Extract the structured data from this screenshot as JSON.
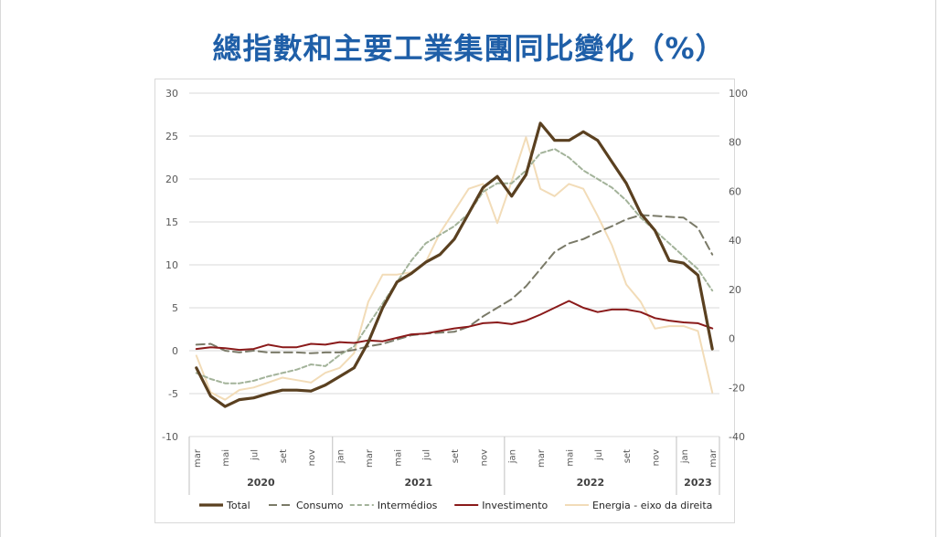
{
  "title": "總指數和主要工業集團同比變化（%）",
  "chart_data": {
    "type": "line",
    "xlabel": "",
    "ylabel": "",
    "ylim": [
      -10,
      30
    ],
    "y2lim": [
      -40,
      100
    ],
    "grid": true,
    "legend_position": "bottom",
    "y_ticks": [
      "30",
      "25",
      "20",
      "15",
      "10",
      "5",
      "0",
      "-5",
      "-10"
    ],
    "y2_ticks": [
      "100",
      "80",
      "60",
      "40",
      "20",
      "0",
      "-20",
      "-40"
    ],
    "x_tick_labels": [
      "mar",
      "mai",
      "jul",
      "set",
      "nov",
      "jan",
      "mar",
      "mai",
      "jul",
      "set",
      "nov",
      "jan",
      "mar",
      "mai",
      "jul",
      "set",
      "nov",
      "jan",
      "mar"
    ],
    "years": [
      "2020",
      "2021",
      "2022",
      "2023"
    ],
    "x": [
      "2020-03",
      "2020-04",
      "2020-05",
      "2020-06",
      "2020-07",
      "2020-08",
      "2020-09",
      "2020-10",
      "2020-11",
      "2020-12",
      "2021-01",
      "2021-02",
      "2021-03",
      "2021-04",
      "2021-05",
      "2021-06",
      "2021-07",
      "2021-08",
      "2021-09",
      "2021-10",
      "2021-11",
      "2021-12",
      "2022-01",
      "2022-02",
      "2022-03",
      "2022-04",
      "2022-05",
      "2022-06",
      "2022-07",
      "2022-08",
      "2022-09",
      "2022-10",
      "2022-11",
      "2022-12",
      "2023-01",
      "2023-02",
      "2023-03"
    ],
    "series": [
      {
        "name": "Total",
        "axis": "left",
        "color": "#5a4020",
        "style": "solid-thick",
        "values": [
          -2.0,
          -5.3,
          -6.5,
          -5.7,
          -5.5,
          -5.0,
          -4.6,
          -4.6,
          -4.7,
          -4.0,
          -3.0,
          -2.0,
          1.0,
          5.0,
          8.0,
          9.0,
          10.3,
          11.2,
          13.0,
          16.0,
          19.0,
          20.3,
          18.0,
          20.5,
          26.5,
          24.5,
          24.5,
          25.5,
          24.5,
          22.0,
          19.5,
          16.0,
          14.0,
          10.5,
          10.2,
          8.8,
          0.2
        ]
      },
      {
        "name": "Consumo",
        "axis": "left",
        "color": "#7a7a68",
        "style": "dashed-long",
        "values": [
          0.7,
          0.8,
          0.0,
          -0.2,
          0.0,
          -0.2,
          -0.2,
          -0.2,
          -0.3,
          -0.2,
          -0.2,
          0.1,
          0.5,
          0.8,
          1.3,
          1.8,
          2.0,
          2.1,
          2.2,
          2.8,
          4.0,
          5.0,
          6.0,
          7.5,
          9.5,
          11.5,
          12.5,
          13.0,
          13.8,
          14.5,
          15.3,
          15.8,
          15.7,
          15.6,
          15.5,
          14.3,
          11.2
        ]
      },
      {
        "name": "Intermédios",
        "axis": "left",
        "color": "#a3b39a",
        "style": "dashed-short",
        "values": [
          -2.6,
          -3.3,
          -3.8,
          -3.8,
          -3.5,
          -3.0,
          -2.6,
          -2.2,
          -1.6,
          -1.8,
          -0.5,
          0.5,
          3.0,
          5.5,
          8.0,
          10.5,
          12.5,
          13.5,
          14.5,
          16.0,
          18.5,
          19.5,
          19.5,
          21.0,
          23.0,
          23.5,
          22.5,
          21.0,
          20.0,
          19.0,
          17.5,
          15.5,
          14.0,
          12.5,
          11.0,
          9.5,
          7.0
        ]
      },
      {
        "name": "Investimento",
        "axis": "left",
        "color": "#8a1a1a",
        "style": "solid",
        "values": [
          0.2,
          0.4,
          0.3,
          0.1,
          0.2,
          0.7,
          0.4,
          0.4,
          0.8,
          0.7,
          1.0,
          0.9,
          1.2,
          1.1,
          1.5,
          1.9,
          2.0,
          2.3,
          2.6,
          2.8,
          3.2,
          3.3,
          3.1,
          3.5,
          4.2,
          5.0,
          5.8,
          5.0,
          4.5,
          4.8,
          4.8,
          4.5,
          3.8,
          3.5,
          3.3,
          3.2,
          2.6
        ]
      },
      {
        "name": "Energia - eixo da direita",
        "axis": "right",
        "color": "#f2dcb8",
        "style": "solid",
        "values": [
          -7,
          -22,
          -25,
          -21,
          -20,
          -18,
          -16,
          -17,
          -18,
          -14,
          -12,
          -6,
          15,
          26,
          26,
          27,
          31,
          43,
          52,
          61,
          63,
          47,
          64,
          82,
          61,
          58,
          63,
          61,
          50,
          38,
          22,
          15,
          4,
          5,
          5,
          3,
          -22
        ]
      }
    ]
  }
}
